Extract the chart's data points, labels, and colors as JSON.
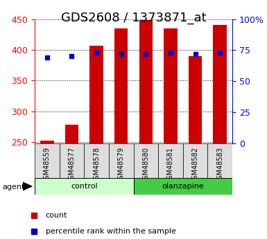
{
  "title": "GDS2608 / 1373871_at",
  "samples": [
    "GSM48559",
    "GSM48577",
    "GSM48578",
    "GSM48579",
    "GSM48580",
    "GSM48581",
    "GSM48582",
    "GSM48583"
  ],
  "count_values": [
    252,
    278,
    407,
    435,
    448,
    435,
    390,
    440
  ],
  "percentile_values": [
    69,
    70,
    73,
    72,
    72,
    73,
    72,
    73
  ],
  "ylim_left": [
    248,
    450
  ],
  "ylim_right": [
    0,
    100
  ],
  "yticks_left": [
    250,
    300,
    350,
    400,
    450
  ],
  "yticks_right": [
    0,
    25,
    50,
    75,
    100
  ],
  "yticklabels_right": [
    "0",
    "25",
    "50",
    "75",
    "100%"
  ],
  "bar_color": "#cc0000",
  "dot_color": "#0000cc",
  "bar_bottom": 248,
  "control_color": "#ccffcc",
  "olanzapine_color": "#44cc44",
  "agent_label": "agent",
  "sample_bg": "#dddddd",
  "title_fontsize": 13,
  "tick_fontsize": 9,
  "label_fontsize": 8
}
